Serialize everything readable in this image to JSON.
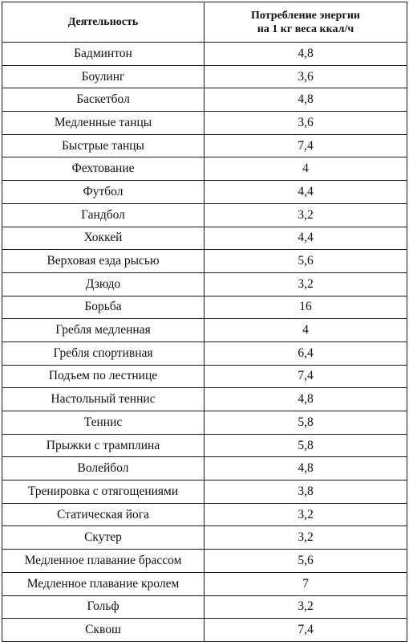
{
  "table": {
    "headers": {
      "activity": "Деятельность",
      "energy_line1": "Потребление энергии",
      "energy_line2": "на 1 кг веса ккал/ч"
    },
    "rows": [
      {
        "activity": "Бадминтон",
        "value": "4,8"
      },
      {
        "activity": "Боулинг",
        "value": "3,6"
      },
      {
        "activity": "Баскетбол",
        "value": "4,8"
      },
      {
        "activity": "Медленные танцы",
        "value": "3,6"
      },
      {
        "activity": "Быстрые танцы",
        "value": "7,4"
      },
      {
        "activity": "Фехтование",
        "value": "4"
      },
      {
        "activity": "Футбол",
        "value": "4,4"
      },
      {
        "activity": "Гандбол",
        "value": "3,2"
      },
      {
        "activity": "Хоккей",
        "value": "4,4"
      },
      {
        "activity": "Верховая езда рысью",
        "value": "5,6"
      },
      {
        "activity": "Дзюдо",
        "value": "3,2"
      },
      {
        "activity": "Борьба",
        "value": "16"
      },
      {
        "activity": "Гребля медленная",
        "value": "4"
      },
      {
        "activity": "Гребля спортивная",
        "value": "6,4"
      },
      {
        "activity": "Подъем по лестнице",
        "value": "7,4"
      },
      {
        "activity": "Настольный теннис",
        "value": "4,8"
      },
      {
        "activity": "Теннис",
        "value": "5,8"
      },
      {
        "activity": "Прыжки с трамплина",
        "value": "5,8"
      },
      {
        "activity": "Волейбол",
        "value": "4,8"
      },
      {
        "activity": "Тренировка с отягощениями",
        "value": "3,8"
      },
      {
        "activity": "Статическая йога",
        "value": "3,2"
      },
      {
        "activity": "Скутер",
        "value": "3,2"
      },
      {
        "activity": "Медленное плавание брассом",
        "value": "5,6"
      },
      {
        "activity": "Медленное плавание кролем",
        "value": "7"
      },
      {
        "activity": "Гольф",
        "value": "3,2"
      },
      {
        "activity": "Сквош",
        "value": "7,4"
      }
    ]
  }
}
